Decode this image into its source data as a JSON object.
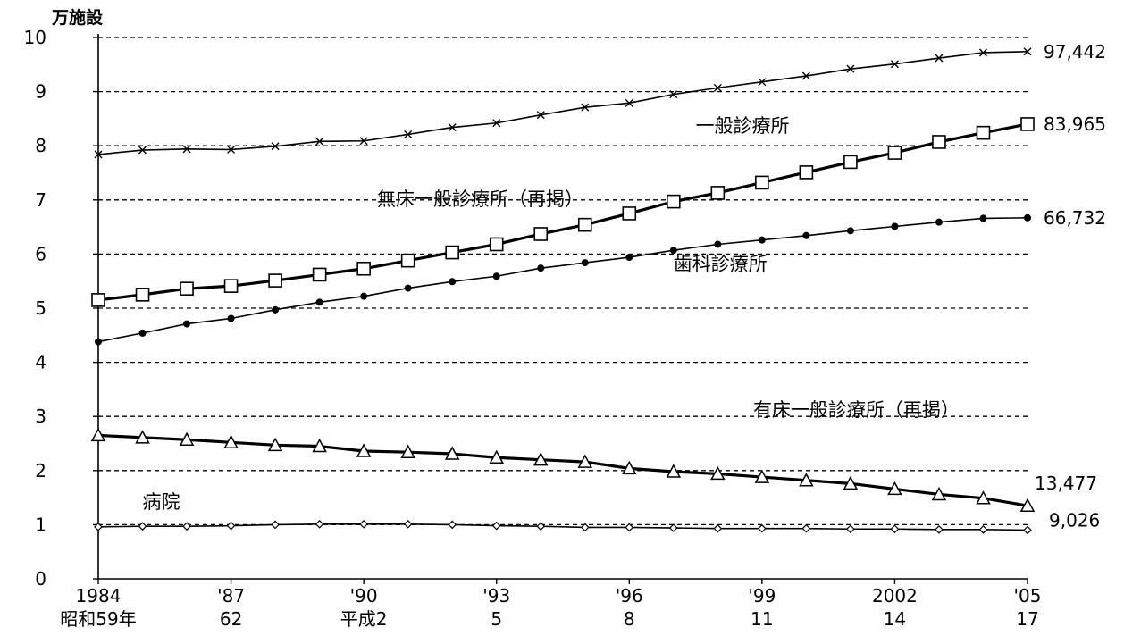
{
  "chart_data": {
    "type": "line",
    "unit_label": "万施設",
    "ylim": [
      0,
      10
    ],
    "yticks": [
      "0",
      "1",
      "2",
      "3",
      "4",
      "5",
      "6",
      "7",
      "8",
      "9",
      "10"
    ],
    "grid": true,
    "x": [
      1984,
      1985,
      1986,
      1987,
      1988,
      1989,
      1990,
      1991,
      1992,
      1993,
      1994,
      1995,
      1996,
      1997,
      1998,
      1999,
      2000,
      2001,
      2002,
      2003,
      2004,
      2005
    ],
    "xticks": [
      {
        "x": 1984,
        "top": "1984",
        "bottom": "昭和59年"
      },
      {
        "x": 1987,
        "top": "'87",
        "bottom": "62"
      },
      {
        "x": 1990,
        "top": "'90",
        "bottom": "平成2"
      },
      {
        "x": 1993,
        "top": "'93",
        "bottom": "5"
      },
      {
        "x": 1996,
        "top": "'96",
        "bottom": "8"
      },
      {
        "x": 1999,
        "top": "'99",
        "bottom": "11"
      },
      {
        "x": 2002,
        "top": "2002",
        "bottom": "14"
      },
      {
        "x": 2005,
        "top": "'05",
        "bottom": "17"
      }
    ],
    "series": [
      {
        "name": "一般診療所",
        "marker": "cross",
        "width": 1.6,
        "label_pos": {
          "x": 1997.5,
          "y": 8.25
        },
        "end_label": "97,442",
        "values": [
          7.84,
          7.92,
          7.94,
          7.93,
          7.99,
          8.08,
          8.09,
          8.21,
          8.34,
          8.42,
          8.57,
          8.71,
          8.79,
          8.95,
          9.07,
          9.18,
          9.29,
          9.42,
          9.51,
          9.62,
          9.72,
          9.74
        ]
      },
      {
        "name": "無床一般診療所（再掲）",
        "marker": "square",
        "width": 3.2,
        "label_pos": {
          "x": 1990.3,
          "y": 6.9
        },
        "end_label": "83,965",
        "values": [
          5.15,
          5.25,
          5.36,
          5.41,
          5.51,
          5.62,
          5.73,
          5.88,
          6.03,
          6.18,
          6.37,
          6.54,
          6.75,
          6.97,
          7.13,
          7.32,
          7.51,
          7.7,
          7.87,
          8.07,
          8.24,
          8.4
        ]
      },
      {
        "name": "歯科診療所",
        "marker": "dot",
        "width": 1.6,
        "label_pos": {
          "x": 1997.0,
          "y": 5.7
        },
        "end_label": "66,732",
        "values": [
          4.38,
          4.54,
          4.71,
          4.81,
          4.97,
          5.11,
          5.22,
          5.37,
          5.49,
          5.59,
          5.74,
          5.84,
          5.94,
          6.07,
          6.18,
          6.26,
          6.34,
          6.43,
          6.51,
          6.59,
          6.66,
          6.67
        ]
      },
      {
        "name": "有床一般診療所（再掲）",
        "marker": "triangle",
        "width": 3.2,
        "label_pos": {
          "x": 1998.8,
          "y": 3.0
        },
        "end_label": "13,477",
        "values": [
          2.65,
          2.61,
          2.57,
          2.52,
          2.47,
          2.45,
          2.36,
          2.34,
          2.31,
          2.24,
          2.2,
          2.16,
          2.04,
          1.98,
          1.94,
          1.88,
          1.82,
          1.76,
          1.66,
          1.56,
          1.49,
          1.35
        ]
      },
      {
        "name": "病院",
        "marker": "diamond",
        "width": 1.6,
        "label_pos": {
          "x": 1985.0,
          "y": 1.3
        },
        "end_label": "9,026",
        "values": [
          0.96,
          0.97,
          0.97,
          0.98,
          1.0,
          1.01,
          1.01,
          1.01,
          1.0,
          0.98,
          0.97,
          0.95,
          0.95,
          0.94,
          0.93,
          0.93,
          0.93,
          0.92,
          0.92,
          0.91,
          0.91,
          0.9
        ]
      }
    ]
  }
}
